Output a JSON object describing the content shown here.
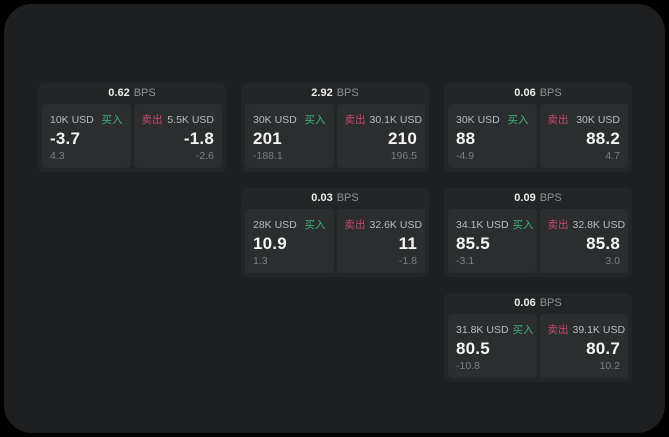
{
  "labels": {
    "bps_unit": "BPS",
    "buy": "买入",
    "sell": "卖出"
  },
  "colors": {
    "background": "#000000",
    "surface": "#1d1f20",
    "card": "#232526",
    "panel": "#2b2d2e",
    "buy_accent": "#3fb377",
    "sell_accent": "#c7496a"
  },
  "cards": [
    {
      "bps": "0.62",
      "buy": {
        "amount": "10K USD",
        "value": "-3.7",
        "sub": "4.3"
      },
      "sell": {
        "amount": "5.5K USD",
        "value": "-1.8",
        "sub": "-2.6"
      }
    },
    {
      "bps": "2.92",
      "buy": {
        "amount": "30K USD",
        "value": "201",
        "sub": "-188.1"
      },
      "sell": {
        "amount": "30.1K USD",
        "value": "210",
        "sub": "196.5"
      }
    },
    {
      "bps": "0.06",
      "buy": {
        "amount": "30K USD",
        "value": "88",
        "sub": "-4.9"
      },
      "sell": {
        "amount": "30K USD",
        "value": "88.2",
        "sub": "4.7"
      }
    },
    {
      "bps": "0.03",
      "buy": {
        "amount": "28K USD",
        "value": "10.9",
        "sub": "1.3"
      },
      "sell": {
        "amount": "32.6K USD",
        "value": "11",
        "sub": "-1.8"
      }
    },
    {
      "bps": "0.09",
      "buy": {
        "amount": "34.1K USD",
        "value": "85.5",
        "sub": "-3.1"
      },
      "sell": {
        "amount": "32.8K USD",
        "value": "85.8",
        "sub": "3.0"
      }
    },
    {
      "bps": "0.06",
      "buy": {
        "amount": "31.8K USD",
        "value": "80.5",
        "sub": "-10.8"
      },
      "sell": {
        "amount": "39.1K USD",
        "value": "80.7",
        "sub": "10.2"
      }
    }
  ]
}
